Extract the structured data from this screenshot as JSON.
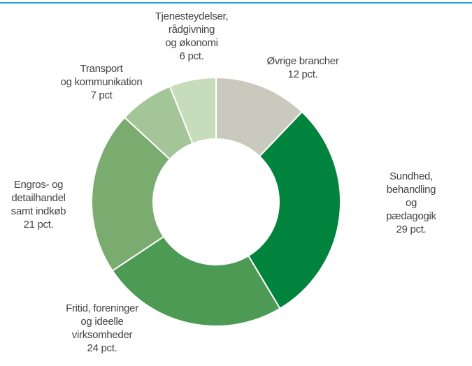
{
  "chart_data": {
    "type": "donut",
    "categories": [
      "Øvrige brancher",
      "Sundhed, behandling\nog pædagogik",
      "Fritid, foreninger\nog ideelle\nvirksomheder",
      "Engros- og\ndetailhandel\nsamt indkøb",
      "Transport\nog kommunikation",
      "Tjenesteydelser,\nrådgivning\nog økonomi"
    ],
    "values": [
      12,
      29,
      24,
      21,
      7,
      6
    ],
    "value_labels": [
      "12 pct.",
      "29 pct.",
      "24 pct.",
      "21 pct.",
      "7 pct",
      "6 pct."
    ],
    "colors": [
      "#c9c9bd",
      "#00843d",
      "#4c9a53",
      "#7aab6f",
      "#a4c597",
      "#c6dcba"
    ]
  }
}
